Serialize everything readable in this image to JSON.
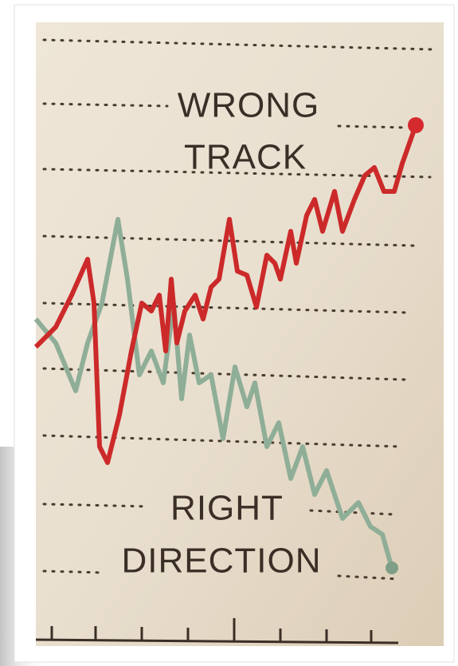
{
  "upper_label": {
    "lines": [
      "WRONG",
      "TRACK"
    ]
  },
  "lower_label": {
    "lines": [
      "RIGHT",
      "DIRECTION"
    ]
  }
}
